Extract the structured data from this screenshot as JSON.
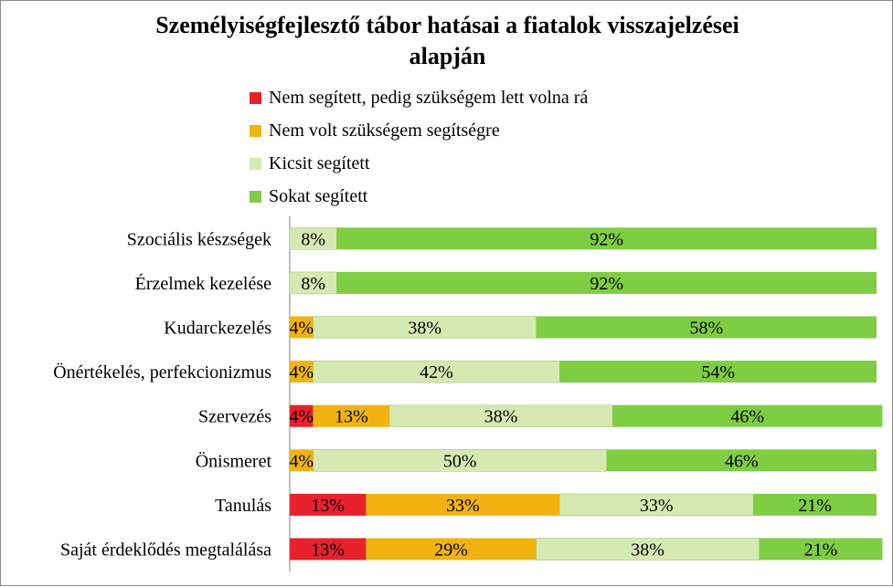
{
  "chart_data": {
    "type": "bar",
    "orientation": "horizontal",
    "stacked": true,
    "percent": true,
    "title": "Személyiségfejlesztő tábor hatásai a fiatalok visszajelzései alapján",
    "title_lines": [
      "Személyiségfejlesztő tábor hatásai a fiatalok visszajelzései",
      "alapján"
    ],
    "categories": [
      "Szociális készségek",
      "Érzelmek kezelése",
      "Kudarckezelés",
      "Önértékelés, perfekcionizmus",
      "Szervezés",
      "Önismeret",
      "Tanulás",
      "Saját érdeklődés megtalálása"
    ],
    "series": [
      {
        "name": "Nem segített, pedig szükségem lett volna rá",
        "color": "#e8212d",
        "values": [
          0,
          0,
          0,
          0,
          4,
          0,
          13,
          13
        ]
      },
      {
        "name": "Nem volt szükségem segítségre",
        "color": "#f0b410",
        "values": [
          0,
          0,
          4,
          4,
          13,
          4,
          33,
          29
        ]
      },
      {
        "name": "Kicsit segített",
        "color": "#d5e9b2",
        "values": [
          8,
          8,
          38,
          42,
          38,
          50,
          33,
          38
        ]
      },
      {
        "name": "Sokat segített",
        "color": "#7fcd43",
        "values": [
          92,
          92,
          58,
          54,
          46,
          46,
          21,
          21
        ]
      }
    ],
    "legend_position": "top",
    "grid": false
  }
}
